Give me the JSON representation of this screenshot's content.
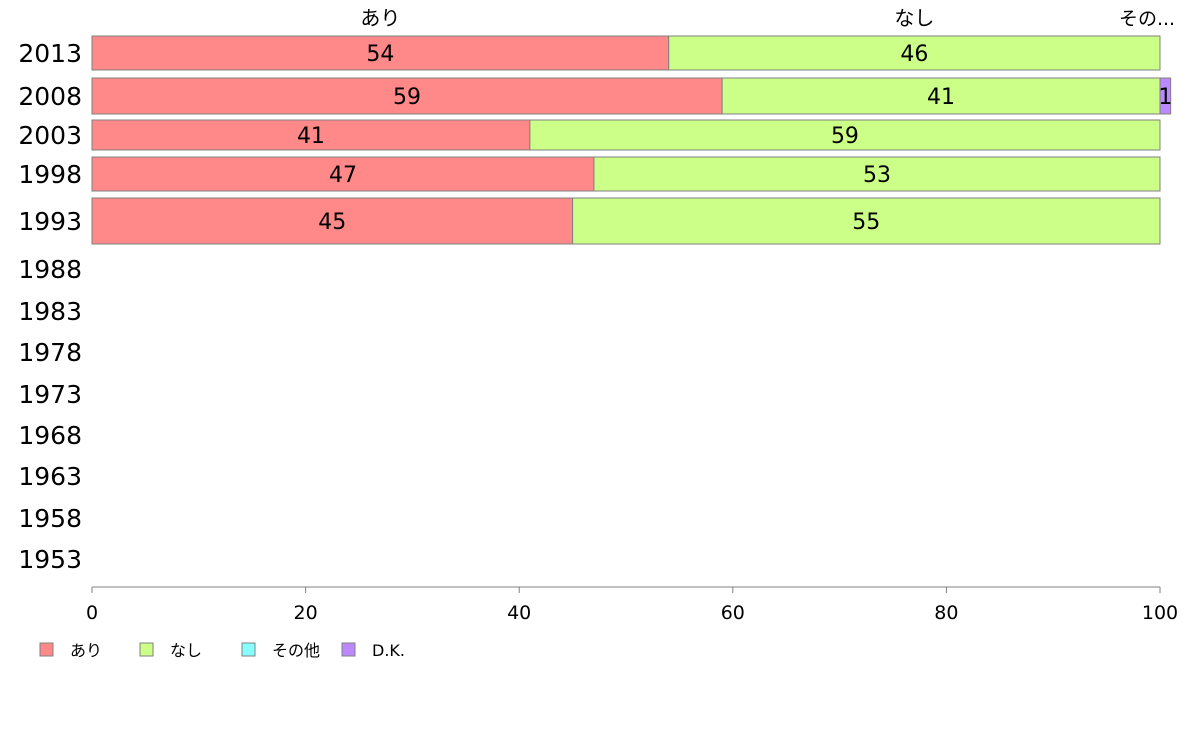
{
  "chart_data": {
    "type": "bar",
    "orientation": "horizontal",
    "stacked": true,
    "title": "",
    "xlabel": "",
    "ylabel": "",
    "xlim": [
      0,
      100
    ],
    "x_ticks": [
      0,
      20,
      40,
      60,
      80,
      100
    ],
    "categories": [
      "2013",
      "2008",
      "2003",
      "1998",
      "1993",
      "1988",
      "1983",
      "1978",
      "1973",
      "1968",
      "1963",
      "1958",
      "1953"
    ],
    "series": [
      {
        "name": "あり",
        "color": "#ff8888",
        "values": [
          54,
          59,
          41,
          47,
          45,
          null,
          null,
          null,
          null,
          null,
          null,
          null,
          null
        ]
      },
      {
        "name": "なし",
        "color": "#ccff88",
        "values": [
          46,
          41,
          59,
          53,
          55,
          null,
          null,
          null,
          null,
          null,
          null,
          null,
          null
        ]
      },
      {
        "name": "その他",
        "color": "#88ffff",
        "values": [
          0,
          0,
          0,
          0,
          0,
          null,
          null,
          null,
          null,
          null,
          null,
          null,
          null
        ]
      },
      {
        "name": "D.K.",
        "color": "#bb88ff",
        "values": [
          0,
          1,
          0,
          0,
          0,
          null,
          null,
          null,
          null,
          null,
          null,
          null,
          null
        ]
      }
    ],
    "top_labels": [
      "あり",
      "なし",
      "その..."
    ],
    "legend": {
      "position": "bottom-left",
      "entries": [
        "あり",
        "なし",
        "その他",
        "D.K."
      ]
    },
    "grid": false
  }
}
